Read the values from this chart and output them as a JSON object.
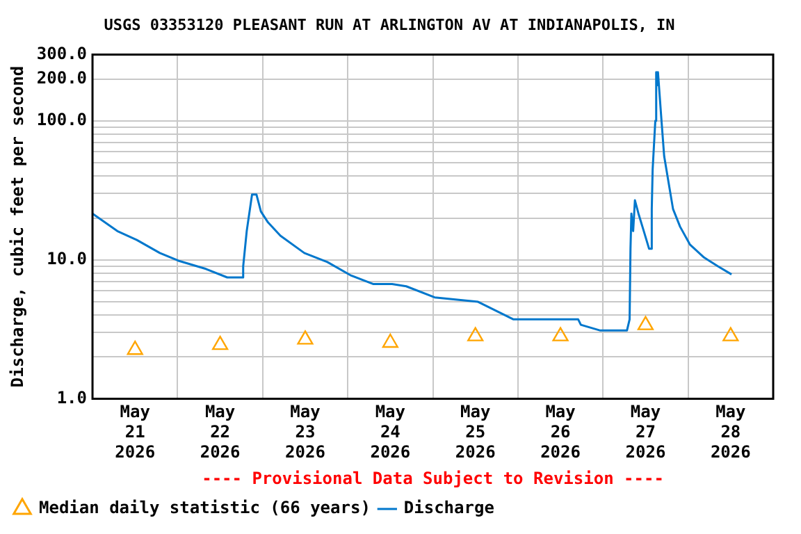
{
  "chart_data": {
    "type": "line",
    "title": "USGS 03353120 PLEASANT RUN AT ARLINGTON AV AT INDIANAPOLIS, IN",
    "ylabel": "Discharge, cubic feet per second",
    "annotations": [
      "---- Provisional Data Subject to Revision ----"
    ],
    "log": true,
    "grid": true,
    "legend": "bottom",
    "xlim": [
      "2026-05-21T00:00",
      "2026-05-29T00:00"
    ],
    "xticks": [
      {
        "value": "2026-05-21T12:00",
        "label": "May\n21\n2026"
      },
      {
        "value": "2026-05-22T00:00",
        "label": null
      },
      {
        "value": "2026-05-22T12:00",
        "label": "May\n22\n2026"
      },
      {
        "value": "2026-05-23T00:00",
        "label": null
      },
      {
        "value": "2026-05-23T12:00",
        "label": "May\n23\n2026"
      },
      {
        "value": "2026-05-24T00:00",
        "label": null
      },
      {
        "value": "2026-05-24T12:00",
        "label": "May\n24\n2026"
      },
      {
        "value": "2026-05-25T00:00",
        "label": null
      },
      {
        "value": "2026-05-25T12:00",
        "label": "May\n25\n2026"
      },
      {
        "value": "2026-05-26T00:00",
        "label": null
      },
      {
        "value": "2026-05-26T12:00",
        "label": "May\n26\n2026"
      },
      {
        "value": "2026-05-27T00:00",
        "label": null
      },
      {
        "value": "2026-05-27T12:00",
        "label": "May\n27\n2026"
      },
      {
        "value": "2026-05-28T00:00",
        "label": null
      },
      {
        "value": "2026-05-28T12:00",
        "label": "May\n28\n2026"
      }
    ],
    "ylim": [
      1,
      300
    ],
    "yticks": [
      {
        "value": 1,
        "label": "1.0"
      },
      {
        "value": 2,
        "label": null
      },
      {
        "value": 3,
        "label": null
      },
      {
        "value": 4,
        "label": null
      },
      {
        "value": 5,
        "label": null
      },
      {
        "value": 6,
        "label": null
      },
      {
        "value": 7,
        "label": null
      },
      {
        "value": 8,
        "label": null
      },
      {
        "value": 9,
        "label": null
      },
      {
        "value": 10,
        "label": "10.0"
      },
      {
        "value": 20,
        "label": null
      },
      {
        "value": 30,
        "label": null
      },
      {
        "value": 40,
        "label": null
      },
      {
        "value": 50,
        "label": null
      },
      {
        "value": 60,
        "label": null
      },
      {
        "value": 70,
        "label": null
      },
      {
        "value": 80,
        "label": null
      },
      {
        "value": 90,
        "label": null
      },
      {
        "value": 100,
        "label": "100.0"
      },
      {
        "value": 200,
        "label": "200.0"
      },
      {
        "value": 300,
        "label": "300.0"
      }
    ],
    "series": [
      {
        "name": "Median daily statistic (66 years)",
        "type": "scatter",
        "marker": "triangle",
        "color": "#ffa500",
        "x": [
          "2026-05-21T12:00",
          "2026-05-22T12:00",
          "2026-05-23T12:00",
          "2026-05-24T12:00",
          "2026-05-25T12:00",
          "2026-05-26T12:00",
          "2026-05-27T12:00",
          "2026-05-28T12:00"
        ],
        "values": [
          2.25,
          2.44,
          2.67,
          2.53,
          2.82,
          2.82,
          3.39,
          2.82
        ]
      },
      {
        "name": "Discharge",
        "marker": "none",
        "color": "#0077cc",
        "x": [
          "2026-05-21T00:00",
          "2026-05-21T07:00",
          "2026-05-21T12:30",
          "2026-05-21T19:00",
          "2026-05-22T00:15",
          "2026-05-22T08:00",
          "2026-05-22T14:00",
          "2026-05-22T18:15",
          "2026-05-22T18:30",
          "2026-05-22T19:30",
          "2026-05-22T21:00",
          "2026-05-22T22:15",
          "2026-05-22T23:30",
          "2026-05-23T01:30",
          "2026-05-23T05:00",
          "2026-05-23T11:45",
          "2026-05-23T18:15",
          "2026-05-24T00:45",
          "2026-05-24T07:15",
          "2026-05-24T12:30",
          "2026-05-24T16:30",
          "2026-05-25T00:30",
          "2026-05-25T12:45",
          "2026-05-25T22:45",
          "2026-05-26T17:00",
          "2026-05-26T17:45",
          "2026-05-26T23:15",
          "2026-05-27T06:45",
          "2026-05-27T07:30",
          "2026-05-27T07:45",
          "2026-05-27T08:00",
          "2026-05-27T08:30",
          "2026-05-27T09:00",
          "2026-05-27T10:00",
          "2026-05-27T11:30",
          "2026-05-27T13:00",
          "2026-05-27T13:30",
          "2026-05-27T13:45",
          "2026-05-27T14:00",
          "2026-05-27T14:45",
          "2026-05-27T15:00",
          "2026-05-27T15:15",
          "2026-05-27T15:30",
          "2026-05-27T16:30",
          "2026-05-27T17:15",
          "2026-05-27T18:30",
          "2026-05-27T19:45",
          "2026-05-27T21:45",
          "2026-05-28T00:30",
          "2026-05-28T04:30",
          "2026-05-28T08:30",
          "2026-05-28T12:15"
        ],
        "values": [
          21.5,
          16.1,
          13.9,
          11.2,
          9.85,
          8.6,
          7.47,
          7.47,
          8.96,
          16.1,
          29.5,
          29.5,
          22.3,
          18.6,
          14.9,
          11.2,
          9.64,
          7.75,
          6.69,
          6.69,
          6.45,
          5.37,
          4.99,
          3.73,
          3.73,
          3.41,
          3.1,
          3.1,
          3.73,
          12.0,
          21.5,
          16.1,
          26.8,
          21.5,
          16.1,
          12.0,
          12.0,
          23.2,
          44.7,
          100,
          224,
          180,
          224,
          100,
          55.7,
          35.9,
          23.2,
          17.3,
          12.9,
          10.4,
          8.96,
          7.86
        ]
      }
    ]
  }
}
